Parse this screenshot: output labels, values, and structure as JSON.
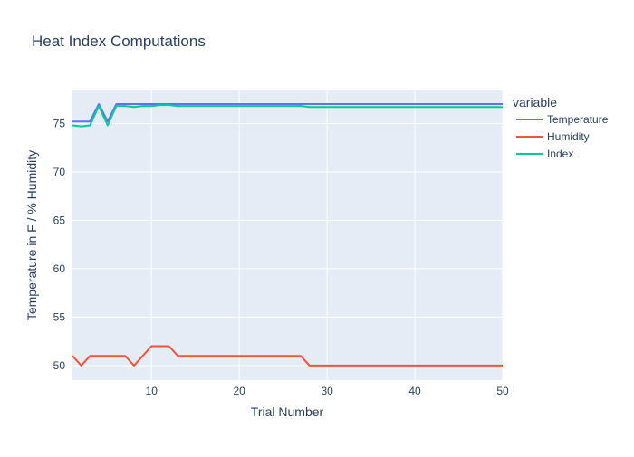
{
  "chart_data": {
    "type": "line",
    "title": "Heat Index Computations",
    "xlabel": "Trial Number",
    "ylabel": "Temperature in F / % Humidity",
    "xlim": [
      1,
      50
    ],
    "ylim": [
      48.5,
      78.4
    ],
    "xticks": [
      10,
      20,
      30,
      40,
      50
    ],
    "yticks": [
      50,
      55,
      60,
      65,
      70,
      75
    ],
    "grid": true,
    "legend": {
      "title": "variable",
      "placement": "right"
    },
    "x": [
      1,
      2,
      3,
      4,
      5,
      6,
      7,
      8,
      9,
      10,
      11,
      12,
      13,
      14,
      15,
      16,
      17,
      18,
      19,
      20,
      21,
      22,
      23,
      24,
      25,
      26,
      27,
      28,
      29,
      30,
      31,
      32,
      33,
      34,
      35,
      36,
      37,
      38,
      39,
      40,
      41,
      42,
      43,
      44,
      45,
      46,
      47,
      48,
      49,
      50
    ],
    "series": [
      {
        "name": "Temperature",
        "color": "#636efa",
        "values": [
          75.2,
          75.2,
          75.2,
          77.0,
          75.2,
          77.0,
          77.0,
          77.0,
          77.0,
          77.0,
          77.0,
          77.0,
          77.0,
          77.0,
          77.0,
          77.0,
          77.0,
          77.0,
          77.0,
          77.0,
          77.0,
          77.0,
          77.0,
          77.0,
          77.0,
          77.0,
          77.0,
          77.0,
          77.0,
          77.0,
          77.0,
          77.0,
          77.0,
          77.0,
          77.0,
          77.0,
          77.0,
          77.0,
          77.0,
          77.0,
          77.0,
          77.0,
          77.0,
          77.0,
          77.0,
          77.0,
          77.0,
          77.0,
          77.0,
          77.0
        ]
      },
      {
        "name": "Humidity",
        "color": "#ef553b",
        "values": [
          51,
          50,
          51,
          51,
          51,
          51,
          51,
          50,
          51,
          52,
          52,
          52,
          51,
          51,
          51,
          51,
          51,
          51,
          51,
          51,
          51,
          51,
          51,
          51,
          51,
          51,
          51,
          50,
          50,
          50,
          50,
          50,
          50,
          50,
          50,
          50,
          50,
          50,
          50,
          50,
          50,
          50,
          50,
          50,
          50,
          50,
          50,
          50,
          50,
          50
        ]
      },
      {
        "name": "Index",
        "color": "#00cc96",
        "values": [
          74.8,
          74.7,
          74.8,
          76.8,
          74.8,
          76.8,
          76.8,
          76.7,
          76.8,
          76.8,
          76.9,
          76.9,
          76.8,
          76.8,
          76.8,
          76.8,
          76.8,
          76.8,
          76.8,
          76.8,
          76.8,
          76.8,
          76.8,
          76.8,
          76.8,
          76.8,
          76.8,
          76.7,
          76.7,
          76.7,
          76.7,
          76.7,
          76.7,
          76.7,
          76.7,
          76.7,
          76.7,
          76.7,
          76.7,
          76.7,
          76.7,
          76.7,
          76.7,
          76.7,
          76.7,
          76.7,
          76.7,
          76.7,
          76.7,
          76.7
        ]
      }
    ]
  },
  "colors": {
    "plot_bg": "#e5ecf6",
    "grid": "#ffffff",
    "text": "#2a3f5f"
  }
}
